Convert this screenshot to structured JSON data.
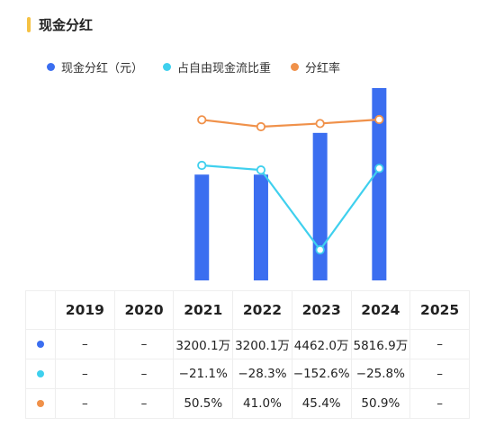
{
  "header": {
    "title": "现金分红"
  },
  "colors": {
    "accent_bar": "#f5c243",
    "dividend": "#3b6ef0",
    "fcf_ratio": "#3fd0ee",
    "payout": "#f0914a"
  },
  "legend": [
    {
      "label": "现金分红（元）",
      "color": "#3b6ef0"
    },
    {
      "label": "占自由现金流比重",
      "color": "#3fd0ee"
    },
    {
      "label": "分红率",
      "color": "#f0914a"
    }
  ],
  "table": {
    "years": [
      "2019",
      "2020",
      "2021",
      "2022",
      "2023",
      "2024",
      "2025"
    ],
    "rows": [
      {
        "color": "#3b6ef0",
        "cells": [
          "–",
          "–",
          "3200.1万",
          "3200.1万",
          "4462.0万",
          "5816.9万",
          "–"
        ]
      },
      {
        "color": "#3fd0ee",
        "cells": [
          "–",
          "–",
          "−21.1%",
          "−28.3%",
          "−152.6%",
          "−25.8%",
          "–"
        ]
      },
      {
        "color": "#f0914a",
        "cells": [
          "–",
          "–",
          "50.5%",
          "41.0%",
          "45.4%",
          "50.9%",
          "–"
        ]
      }
    ]
  },
  "chart_data": {
    "type": "bar",
    "categories": [
      "2019",
      "2020",
      "2021",
      "2022",
      "2023",
      "2024",
      "2025"
    ],
    "series": [
      {
        "name": "现金分红（元）",
        "type": "bar",
        "unit": "万元",
        "values": [
          null,
          null,
          3200.1,
          3200.1,
          4462.0,
          5816.9,
          null
        ]
      },
      {
        "name": "占自由现金流比重",
        "type": "line",
        "unit": "%",
        "values": [
          null,
          null,
          -21.1,
          -28.3,
          -152.6,
          -25.8,
          null
        ]
      },
      {
        "name": "分红率",
        "type": "line",
        "unit": "%",
        "values": [
          null,
          null,
          50.5,
          41.0,
          45.4,
          50.9,
          null
        ]
      }
    ],
    "legend_position": "top-left",
    "grid": false
  }
}
